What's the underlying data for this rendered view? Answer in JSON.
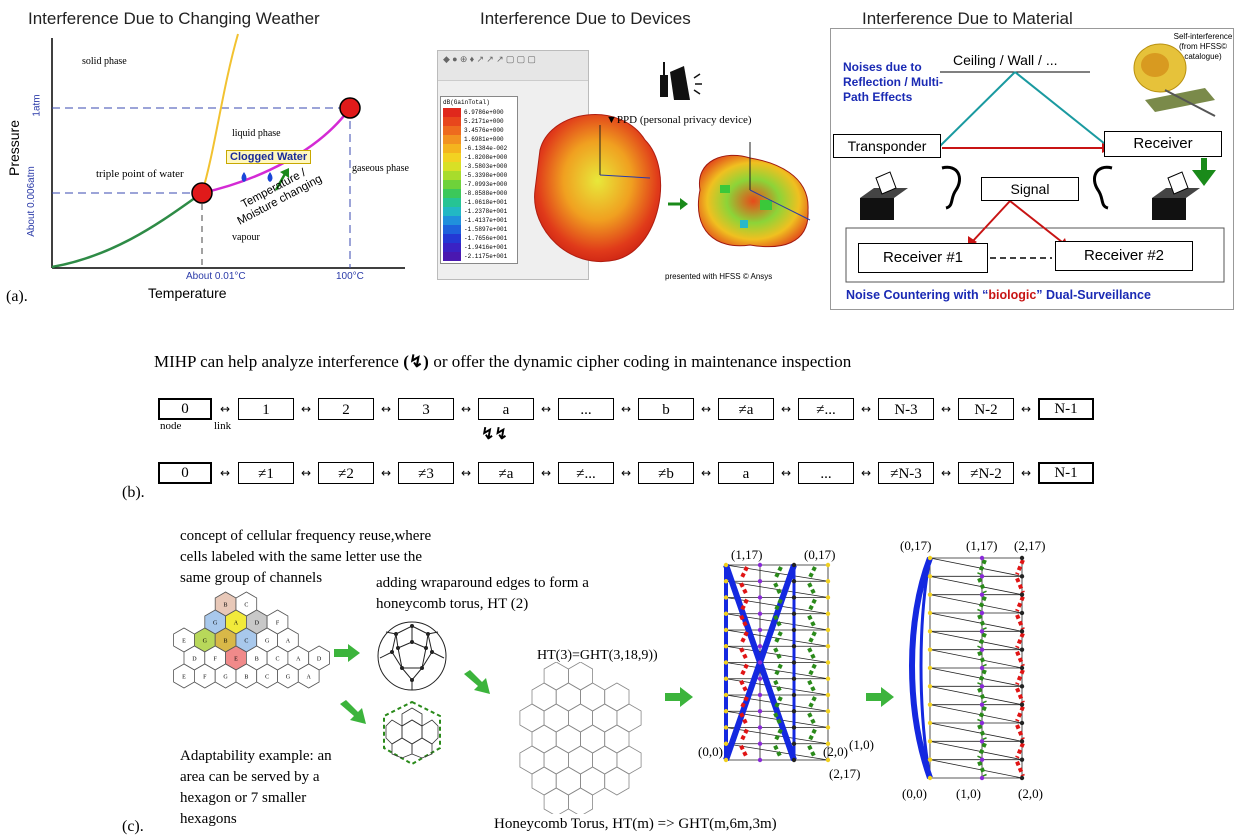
{
  "panel_a": {
    "label": "(a).",
    "weather": {
      "title": "Interference Due to Changing Weather",
      "y_axis": "Pressure",
      "x_axis": "Temperature",
      "p_high": "1atm",
      "p_low": "About 0.006atm",
      "t_low": "About 0.01°C",
      "t_high": "100°C",
      "solid": "solid phase",
      "liquid": "liquid phase",
      "gas": "gaseous phase",
      "vapour": "vapour",
      "triple": "triple point of water",
      "clogged": "Clogged Water",
      "moisture": "Temperature / Moisture changing"
    },
    "devices": {
      "title": "Interference Due to Devices",
      "ppd": "▼PPD (personal privacy device)",
      "hfss": "presented with HFSS © Ansys",
      "legend_title": "dB(GainTotal)",
      "legend_values": [
        "6.9786e+000",
        "5.2171e+000",
        "3.4576e+000",
        "1.6981e+000",
        "-6.1384e-002",
        "-1.8208e+000",
        "-3.5803e+000",
        "-5.3398e+000",
        "-7.0993e+000",
        "-8.8588e+000",
        "-1.0618e+001",
        "-1.2378e+001",
        "-1.4137e+001",
        "-1.5897e+001",
        "-1.7656e+001",
        "-1.9416e+001",
        "-2.1175e+001"
      ],
      "legend_colors": [
        "#e0281c",
        "#e8461c",
        "#ee6a1e",
        "#f29220",
        "#f4b41e",
        "#f2d222",
        "#d8e026",
        "#a8dc2c",
        "#6ed23a",
        "#3cc85a",
        "#26c494",
        "#22b8c4",
        "#2090dc",
        "#1e62dc",
        "#2438d4",
        "#3a22c4",
        "#4a18b0"
      ]
    },
    "material": {
      "title": "Interference Due to Material",
      "noises": "Noises due to Reflection / Multi-Path Effects",
      "ceiling": "Ceiling / Wall / ...",
      "self_interference": "Self-interference (from HFSS© catalogue)",
      "transponder": "Transponder",
      "receiver": "Receiver",
      "signal": "Signal",
      "receiver1": "Receiver #1",
      "receiver2": "Receiver #2",
      "countering_pre": "Noise Countering with “",
      "countering_bio": "biologic",
      "countering_post": "” Dual-Surveillance"
    }
  },
  "panel_b": {
    "label": "(b).",
    "heading": "MIHP can help analyze interference (✡) or offer the dynamic cipher coding in maintenance inspection",
    "heading_pre": "MIHP can help analyze interference",
    "heading_post": "or offer the dynamic cipher coding in maintenance inspection",
    "node_label": "node",
    "link_label": "link",
    "row1": [
      "0",
      "1",
      "2",
      "3",
      "a",
      "...",
      "b",
      "≠a",
      "≠...",
      "N-3",
      "N-2",
      "N-1"
    ],
    "row2": [
      "0",
      "≠1",
      "≠2",
      "≠3",
      "≠a",
      "≠...",
      "≠b",
      "a",
      "...",
      "≠N-3",
      "≠N-2",
      "N-1"
    ]
  },
  "panel_c": {
    "label": "(c).",
    "concept": "concept of cellular frequency reuse,where cells labeled with the same letter use the same group of channels",
    "concept_lines": [
      "concept of cellular frequency reuse,where",
      "cells labeled with the same letter use the",
      "same group of channels"
    ],
    "wrap_lines": [
      "adding wraparound edges to form a",
      "honeycomb torus, HT (2)"
    ],
    "adapt_lines": [
      "Adaptability example: an",
      "area can be served by a",
      "hexagon or 7 smaller",
      "hexagons"
    ],
    "ht3": "HT(3)=GHT(3,18,9))",
    "bottom": "Honeycomb Torus, HT(m) => GHT(m,6m,3m)",
    "hex_letters": [
      "B",
      "C",
      "G",
      "A",
      "D",
      "F",
      "E",
      "G",
      "B",
      "C",
      "G",
      "A",
      "D",
      "F",
      "E",
      "B",
      "C",
      "A",
      "D",
      "E",
      "F",
      "G"
    ],
    "g1_labels": {
      "tl": "(1,17)",
      "tr": "(0,17)",
      "bl": "(0,0)",
      "br1": "(2,0)",
      "br2": "(1,0)",
      "br3": "(2,17)"
    },
    "g2_labels": {
      "t1": "(0,17)",
      "t2": "(1,17)",
      "t3": "(2,17)",
      "b1": "(0,0)",
      "b2": "(1,0)",
      "b3": "(2,0)"
    }
  },
  "colors": {
    "title_gray": "#222222",
    "blue_axis": "#2a3aa8",
    "green_arrow": "#3cb43c",
    "torus_blue": "#1428e0",
    "dash_red": "#e01414",
    "dash_green": "#2a8a1a",
    "material_blue": "#1a2ab4",
    "material_red": "#c81414"
  }
}
